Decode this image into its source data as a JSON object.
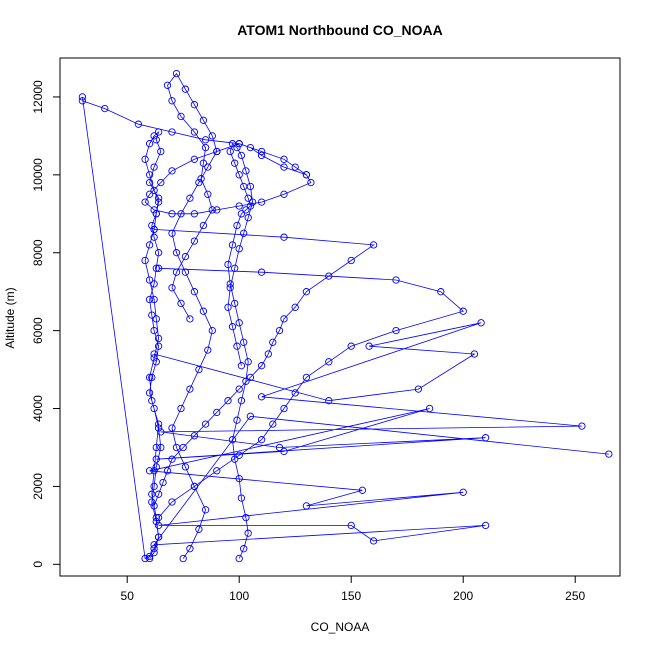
{
  "chart_data": {
    "type": "line",
    "title": "ATOM1 Northbound CO_NOAA",
    "xlabel": "CO_NOAA",
    "ylabel": "Altitude (m)",
    "xlim": [
      20,
      270
    ],
    "ylim": [
      -300,
      13000
    ],
    "xticks": [
      50,
      100,
      150,
      200,
      250
    ],
    "yticks": [
      0,
      2000,
      4000,
      6000,
      8000,
      10000,
      12000
    ],
    "xtick_labels": [
      "50",
      "100",
      "150",
      "200",
      "250"
    ],
    "ytick_labels": [
      "0",
      "2000",
      "4000",
      "6000",
      "8000",
      "10000",
      "12000"
    ],
    "grid": false,
    "legend": "none",
    "colors": {
      "series": "#0000ff"
    },
    "markers": "open-circle",
    "series": [
      {
        "x": [
          60,
          62,
          64,
          63,
          61,
          62,
          63,
          65,
          64,
          62,
          60,
          61,
          63,
          64,
          62,
          61,
          60,
          62,
          63,
          64,
          62,
          61,
          63,
          64,
          62,
          60,
          58,
          60,
          62,
          64,
          63,
          65,
          62,
          60,
          64,
          63,
          62,
          60,
          58,
          60,
          62,
          63,
          64,
          62,
          60,
          61,
          64,
          63,
          62,
          61,
          63,
          64,
          62,
          60,
          58,
          30
        ],
        "y": [
          150,
          300,
          700,
          1100,
          1600,
          2000,
          2500,
          3000,
          3500,
          4000,
          4400,
          4800,
          5200,
          5600,
          6000,
          6400,
          6800,
          7200,
          7600,
          8000,
          8400,
          8700,
          9000,
          9300,
          9600,
          10000,
          10400,
          10800,
          11000,
          11100,
          10900,
          10600,
          10200,
          9800,
          9400,
          9000,
          8600,
          8200,
          7800,
          7300,
          6800,
          6300,
          5800,
          5300,
          4800,
          4200,
          3600,
          3000,
          2400,
          1800,
          1200,
          700,
          400,
          200,
          150,
          12000
        ]
      },
      {
        "x": [
          75,
          78,
          82,
          85,
          80,
          76,
          72,
          70,
          74,
          78,
          82,
          86,
          88,
          84,
          80,
          76,
          72,
          70,
          74,
          78,
          82,
          86,
          90,
          88,
          84,
          80,
          76,
          72,
          68,
          70,
          74,
          80,
          85,
          84,
          83,
          86,
          88,
          84,
          80,
          76,
          72,
          70,
          74,
          78
        ],
        "y": [
          150,
          400,
          900,
          1400,
          2000,
          2500,
          3000,
          3500,
          4000,
          4500,
          5000,
          5500,
          6000,
          6500,
          7000,
          7500,
          8000,
          8500,
          9000,
          9400,
          9800,
          10200,
          10600,
          11000,
          11400,
          11800,
          12200,
          12600,
          12300,
          11900,
          11500,
          11100,
          10700,
          10300,
          9900,
          9500,
          9100,
          8700,
          8300,
          7900,
          7500,
          7100,
          6700,
          6300
        ]
      },
      {
        "x": [
          100,
          102,
          104,
          103,
          101,
          100,
          98,
          97,
          99,
          101,
          103,
          104,
          102,
          100,
          98,
          96,
          95,
          97,
          99,
          101,
          103,
          105,
          104,
          102,
          100,
          98,
          96,
          97,
          99,
          101,
          103,
          105,
          106,
          104,
          102,
          100,
          98,
          96,
          95,
          97,
          99,
          101
        ],
        "y": [
          150,
          400,
          800,
          1200,
          1700,
          2200,
          2700,
          3200,
          3700,
          4200,
          4700,
          5200,
          5700,
          6200,
          6700,
          7200,
          7700,
          8200,
          8700,
          9000,
          9100,
          9200,
          9400,
          9700,
          10000,
          10300,
          10600,
          10800,
          10700,
          10500,
          10100,
          9700,
          9300,
          8900,
          8500,
          8100,
          7600,
          7100,
          6600,
          6100,
          5600,
          5100
        ]
      },
      {
        "x": [
          62,
          140,
          180,
          205,
          158,
          208,
          110,
          253,
          65,
          118,
          210,
          63,
          120,
          185,
          60,
          155,
          130,
          200,
          64,
          150,
          160,
          210,
          62,
          105,
          265
        ],
        "y": [
          5400,
          4200,
          4500,
          5400,
          5600,
          6200,
          4300,
          3550,
          3400,
          3000,
          3250,
          2700,
          2900,
          4000,
          2400,
          1900,
          1500,
          1850,
          1000,
          1000,
          600,
          1000,
          500,
          3800,
          2830
        ]
      },
      {
        "x": [
          30,
          40,
          55,
          70,
          85,
          100,
          110,
          120,
          125,
          130,
          132,
          120,
          110,
          100,
          90,
          80,
          70,
          62,
          58,
          60,
          65,
          70,
          80,
          90,
          100,
          105,
          110,
          120,
          130
        ],
        "y": [
          11900,
          11700,
          11300,
          11100,
          10900,
          10800,
          10600,
          10400,
          10200,
          10000,
          9800,
          9500,
          9300,
          9200,
          9100,
          9000,
          9000,
          9100,
          9300,
          9500,
          9800,
          10100,
          10400,
          10600,
          10800,
          10700,
          10500,
          10200,
          10000
        ]
      },
      {
        "x": [
          62,
          120,
          160,
          150,
          140,
          130,
          125,
          120,
          118,
          115,
          113,
          110,
          105,
          100,
          95,
          90,
          85,
          80,
          75,
          70,
          68,
          66,
          64,
          62
        ],
        "y": [
          8600,
          8400,
          8200,
          7800,
          7400,
          7000,
          6600,
          6300,
          6000,
          5700,
          5400,
          5100,
          4800,
          4500,
          4200,
          3900,
          3600,
          3300,
          3000,
          2700,
          2400,
          2100,
          1800,
          1500
        ]
      },
      {
        "x": [
          64,
          110,
          170,
          190,
          200,
          170,
          150,
          140,
          130,
          125,
          120,
          115,
          110,
          100,
          90,
          80,
          70,
          64
        ],
        "y": [
          7600,
          7500,
          7300,
          7000,
          6500,
          6000,
          5600,
          5200,
          4800,
          4400,
          4000,
          3600,
          3200,
          2800,
          2400,
          2000,
          1600,
          1200
        ]
      }
    ]
  }
}
